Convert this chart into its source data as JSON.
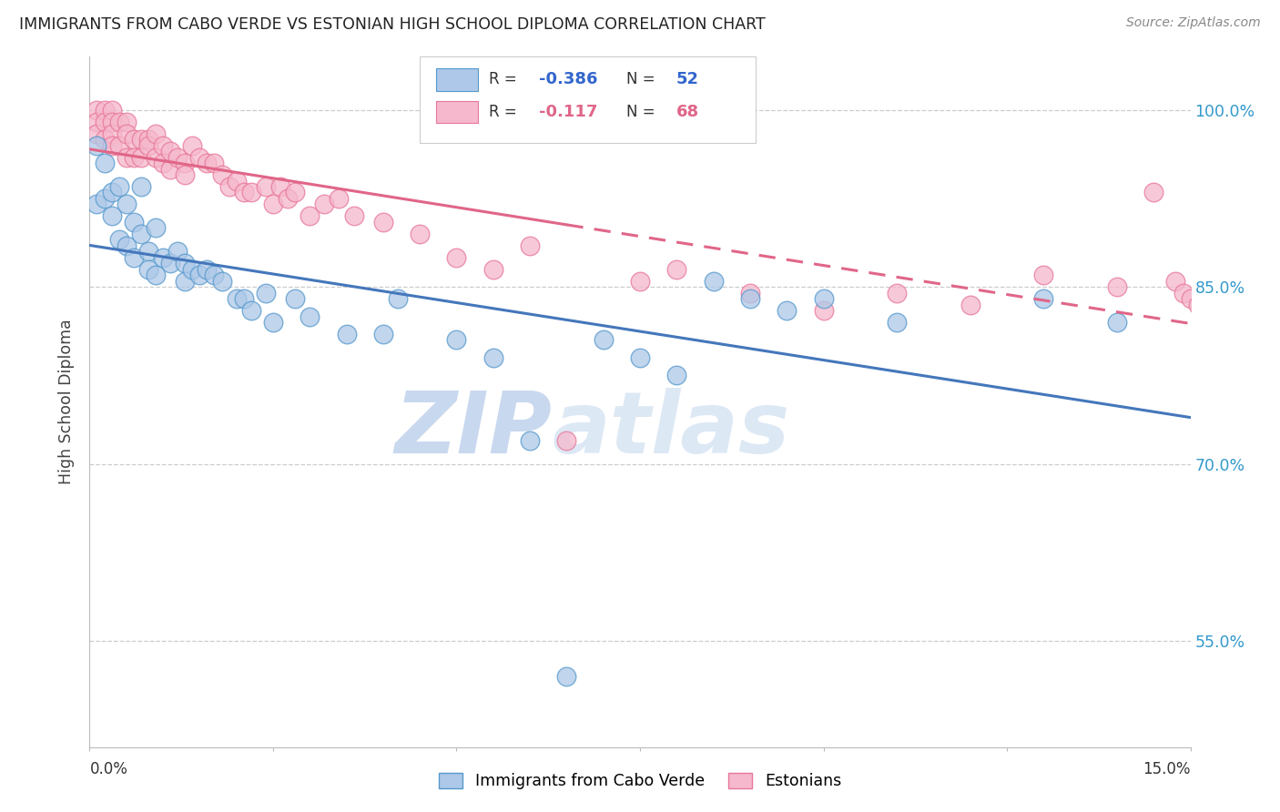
{
  "title": "IMMIGRANTS FROM CABO VERDE VS ESTONIAN HIGH SCHOOL DIPLOMA CORRELATION CHART",
  "source": "Source: ZipAtlas.com",
  "ylabel": "High School Diploma",
  "ytick_labels": [
    "100.0%",
    "85.0%",
    "70.0%",
    "55.0%"
  ],
  "ytick_values": [
    1.0,
    0.85,
    0.7,
    0.55
  ],
  "xmin": 0.0,
  "xmax": 0.15,
  "ymin": 0.46,
  "ymax": 1.045,
  "legend_blue_label": "Immigrants from Cabo Verde",
  "legend_pink_label": "Estonians",
  "blue_R": "-0.386",
  "blue_N": "52",
  "pink_R": "-0.117",
  "pink_N": "68",
  "blue_color": "#adc8e8",
  "blue_edge_color": "#5599cc",
  "blue_line_color": "#4477bb",
  "pink_color": "#f5b8cc",
  "pink_edge_color": "#e87799",
  "pink_line_color": "#e06688",
  "blue_scatter_x": [
    0.001,
    0.001,
    0.002,
    0.002,
    0.003,
    0.003,
    0.004,
    0.004,
    0.005,
    0.005,
    0.006,
    0.006,
    0.007,
    0.007,
    0.008,
    0.008,
    0.009,
    0.009,
    0.01,
    0.011,
    0.012,
    0.013,
    0.013,
    0.014,
    0.015,
    0.016,
    0.017,
    0.018,
    0.02,
    0.021,
    0.022,
    0.024,
    0.025,
    0.028,
    0.03,
    0.035,
    0.04,
    0.042,
    0.05,
    0.055,
    0.06,
    0.065,
    0.07,
    0.075,
    0.08,
    0.085,
    0.09,
    0.095,
    0.1,
    0.11,
    0.13,
    0.14
  ],
  "blue_scatter_y": [
    0.97,
    0.92,
    0.955,
    0.925,
    0.93,
    0.91,
    0.935,
    0.89,
    0.92,
    0.885,
    0.905,
    0.875,
    0.935,
    0.895,
    0.88,
    0.865,
    0.9,
    0.86,
    0.875,
    0.87,
    0.88,
    0.87,
    0.855,
    0.865,
    0.86,
    0.865,
    0.86,
    0.855,
    0.84,
    0.84,
    0.83,
    0.845,
    0.82,
    0.84,
    0.825,
    0.81,
    0.81,
    0.84,
    0.805,
    0.79,
    0.72,
    0.52,
    0.805,
    0.79,
    0.775,
    0.855,
    0.84,
    0.83,
    0.84,
    0.82,
    0.84,
    0.82
  ],
  "pink_scatter_x": [
    0.001,
    0.001,
    0.001,
    0.002,
    0.002,
    0.002,
    0.003,
    0.003,
    0.003,
    0.003,
    0.004,
    0.004,
    0.005,
    0.005,
    0.005,
    0.006,
    0.006,
    0.007,
    0.007,
    0.008,
    0.008,
    0.009,
    0.009,
    0.01,
    0.01,
    0.011,
    0.011,
    0.012,
    0.013,
    0.013,
    0.014,
    0.015,
    0.016,
    0.017,
    0.018,
    0.019,
    0.02,
    0.021,
    0.022,
    0.024,
    0.025,
    0.026,
    0.027,
    0.028,
    0.03,
    0.032,
    0.034,
    0.036,
    0.04,
    0.045,
    0.05,
    0.055,
    0.06,
    0.065,
    0.075,
    0.08,
    0.09,
    0.1,
    0.11,
    0.12,
    0.13,
    0.14,
    0.145,
    0.148,
    0.149,
    0.15,
    0.151,
    0.152
  ],
  "pink_scatter_y": [
    1.0,
    0.99,
    0.98,
    1.0,
    0.99,
    0.975,
    1.0,
    0.99,
    0.98,
    0.97,
    0.99,
    0.97,
    0.99,
    0.98,
    0.96,
    0.975,
    0.96,
    0.975,
    0.96,
    0.975,
    0.97,
    0.98,
    0.96,
    0.97,
    0.955,
    0.965,
    0.95,
    0.96,
    0.955,
    0.945,
    0.97,
    0.96,
    0.955,
    0.955,
    0.945,
    0.935,
    0.94,
    0.93,
    0.93,
    0.935,
    0.92,
    0.935,
    0.925,
    0.93,
    0.91,
    0.92,
    0.925,
    0.91,
    0.905,
    0.895,
    0.875,
    0.865,
    0.885,
    0.72,
    0.855,
    0.865,
    0.845,
    0.83,
    0.845,
    0.835,
    0.86,
    0.85,
    0.93,
    0.855,
    0.845,
    0.84,
    0.835,
    0.83
  ],
  "background_color": "#ffffff",
  "grid_color": "#cccccc",
  "watermark_zip": "ZIP",
  "watermark_atlas": "atlas",
  "watermark_color": "#dce8f5"
}
